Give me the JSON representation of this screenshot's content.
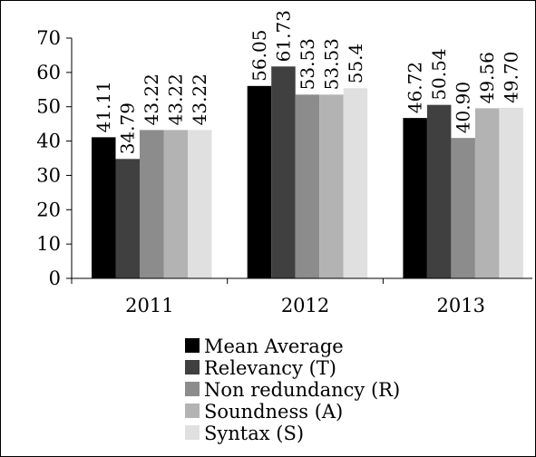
{
  "chart_data": {
    "type": "bar",
    "title": "",
    "xlabel": "",
    "ylabel": "",
    "ylim": [
      0,
      70
    ],
    "yticks": [
      0,
      10,
      20,
      30,
      40,
      50,
      60,
      70
    ],
    "grid": false,
    "legend_position": "bottom",
    "categories": [
      "2011",
      "2012",
      "2013"
    ],
    "series": [
      {
        "name": "Mean Average",
        "color": "#000000",
        "values": [
          41.11,
          56.05,
          46.72
        ],
        "labels": [
          "41.11",
          "56.05",
          "46.72"
        ]
      },
      {
        "name": "Relevancy (T)",
        "color": "#404040",
        "values": [
          34.79,
          61.73,
          50.54
        ],
        "labels": [
          "34.79",
          "61.73",
          "50.54"
        ]
      },
      {
        "name": "Non redundancy (R)",
        "color": "#8c8c8c",
        "values": [
          43.22,
          53.53,
          40.9
        ],
        "labels": [
          "43.22",
          "53.53",
          "40.90"
        ]
      },
      {
        "name": "Soundness (A)",
        "color": "#b3b3b3",
        "values": [
          43.22,
          53.53,
          49.56
        ],
        "labels": [
          "43.22",
          "53.53",
          "49.56"
        ]
      },
      {
        "name": "Syntax (S)",
        "color": "#e0e0e0",
        "values": [
          43.22,
          55.4,
          49.7
        ],
        "labels": [
          "43.22",
          "55.4",
          "49.70"
        ]
      }
    ]
  }
}
